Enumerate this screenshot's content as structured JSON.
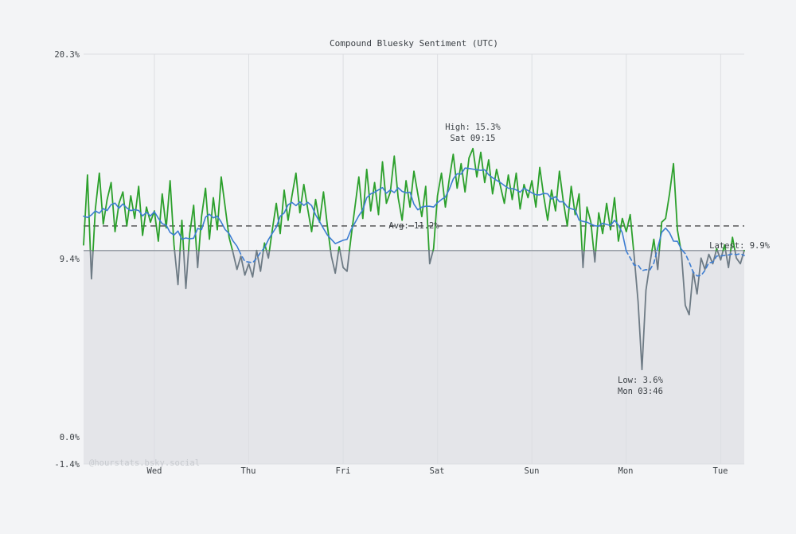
{
  "watermark": "@hourstats.bsky.social",
  "colors": {
    "background": "#f3f4f6",
    "text": "#3a3f44",
    "watermark": "#c7cacf",
    "grid": "#dcdee2",
    "shade": "#e4e5e9",
    "threshold_line": "#8d949c",
    "avg_line": "#222222",
    "raw_above": "#2ca02c",
    "raw_below": "#6e7b85",
    "smoothed": "#3d7dd2"
  },
  "chart_data": {
    "type": "line",
    "title": "Compound Bluesky Sentiment (UTC)",
    "units": "%",
    "grid": "vertical-day-lines",
    "x_axis": {
      "tick_labels": [
        "Wed",
        "Thu",
        "Fri",
        "Sat",
        "Sun",
        "Mon",
        "Tue"
      ],
      "tick_hours": [
        18,
        42,
        66,
        90,
        114,
        138,
        162
      ],
      "hours_total": 168
    },
    "y_axis": {
      "tick_labels": [
        "20.3%",
        "9.4%",
        "0.0%",
        "-1.4%"
      ],
      "tick_values": [
        20.3,
        9.4,
        0.0,
        -1.4
      ],
      "ylim": [
        -1.4,
        20.3
      ]
    },
    "series": [
      {
        "name": "hourly_sentiment_pct",
        "style": "raw-jagged, green above latest threshold, gray below",
        "values": [
          10.2,
          13.9,
          8.4,
          12.1,
          14.0,
          11.3,
          12.6,
          13.5,
          10.9,
          12.4,
          13.0,
          11.2,
          12.8,
          11.6,
          13.3,
          10.7,
          12.2,
          11.4,
          12.0,
          10.4,
          12.9,
          11.1,
          13.6,
          10.2,
          8.1,
          11.5,
          7.9,
          10.8,
          12.3,
          9.0,
          11.7,
          13.2,
          10.5,
          12.7,
          11.0,
          13.8,
          12.2,
          10.6,
          9.8,
          8.9,
          9.6,
          8.6,
          9.2,
          8.5,
          9.9,
          8.8,
          10.3,
          9.5,
          11.0,
          12.4,
          10.8,
          13.1,
          11.5,
          12.8,
          14.0,
          11.9,
          13.4,
          12.1,
          10.9,
          12.6,
          11.4,
          13.0,
          11.2,
          9.6,
          8.7,
          10.1,
          9.0,
          8.8,
          10.6,
          12.2,
          13.8,
          11.6,
          14.2,
          12.0,
          13.5,
          11.8,
          14.6,
          12.4,
          13.0,
          14.9,
          12.7,
          11.5,
          13.6,
          12.2,
          14.1,
          12.9,
          11.7,
          13.3,
          9.2,
          10.0,
          12.8,
          14.0,
          12.2,
          13.7,
          15.0,
          13.2,
          14.5,
          13.0,
          14.8,
          15.3,
          13.8,
          15.1,
          13.5,
          14.7,
          12.9,
          14.2,
          13.3,
          12.4,
          13.9,
          12.6,
          14.0,
          12.1,
          13.4,
          12.7,
          13.6,
          12.2,
          14.3,
          12.8,
          11.5,
          13.1,
          12.0,
          14.1,
          12.5,
          11.2,
          13.3,
          11.8,
          12.9,
          9.0,
          12.2,
          11.4,
          9.3,
          11.9,
          10.8,
          12.4,
          11.0,
          12.7,
          10.4,
          11.6,
          10.9,
          11.8,
          9.6,
          7.2,
          3.6,
          7.8,
          9.2,
          10.5,
          8.9,
          11.4,
          11.6,
          12.9,
          14.5,
          11.0,
          9.8,
          7.0,
          6.5,
          8.8,
          7.6,
          9.5,
          8.9,
          9.7,
          9.2,
          10.0,
          9.4,
          10.2,
          9.0,
          10.6,
          9.5,
          9.2,
          9.9
        ]
      },
      {
        "name": "smoothed_trend",
        "style": "blue, dashed below latest threshold",
        "derived": "centered_moving_average",
        "window": 9
      }
    ],
    "average": {
      "label": "Avg: 11.2%",
      "value": 11.2
    },
    "high": {
      "label": "High: 15.3%",
      "time": "Sat 09:15",
      "value": 15.3,
      "hour_index": 99
    },
    "low": {
      "label": "Low: 3.6%",
      "time": "Mon 03:46",
      "value": 3.6,
      "hour_index": 142
    },
    "latest": {
      "label": "Latest: 9.9%",
      "value": 9.9
    }
  }
}
